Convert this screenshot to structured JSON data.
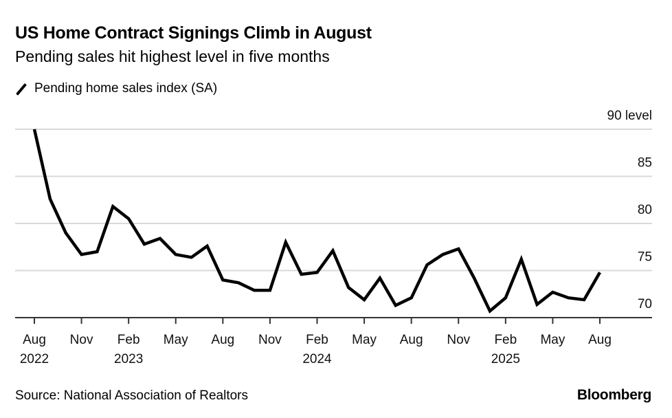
{
  "chart_data": {
    "type": "line",
    "title": "US Home Contract Signings Climb in August",
    "subtitle": "Pending sales hit highest level in five months",
    "xlabel": "",
    "ylabel": "",
    "y_unit_label": "level",
    "ylim": [
      70,
      90
    ],
    "yticks": [
      70,
      75,
      80,
      85,
      90
    ],
    "grid": true,
    "legend_placement": "top-left",
    "x": [
      "2022-08",
      "2022-09",
      "2022-10",
      "2022-11",
      "2022-12",
      "2023-01",
      "2023-02",
      "2023-03",
      "2023-04",
      "2023-05",
      "2023-06",
      "2023-07",
      "2023-08",
      "2023-09",
      "2023-10",
      "2023-11",
      "2023-12",
      "2024-01",
      "2024-02",
      "2024-03",
      "2024-04",
      "2024-05",
      "2024-06",
      "2024-07",
      "2024-08",
      "2024-09",
      "2024-10",
      "2024-11",
      "2024-12",
      "2025-01",
      "2025-02",
      "2025-03",
      "2025-04",
      "2025-05",
      "2025-06",
      "2025-07",
      "2025-08"
    ],
    "xticks": [
      {
        "index": 0,
        "month": "Aug",
        "year": "2022"
      },
      {
        "index": 3,
        "month": "Nov",
        "year": ""
      },
      {
        "index": 6,
        "month": "Feb",
        "year": "2023"
      },
      {
        "index": 9,
        "month": "May",
        "year": ""
      },
      {
        "index": 12,
        "month": "Aug",
        "year": ""
      },
      {
        "index": 15,
        "month": "Nov",
        "year": ""
      },
      {
        "index": 18,
        "month": "Feb",
        "year": "2024"
      },
      {
        "index": 21,
        "month": "May",
        "year": ""
      },
      {
        "index": 24,
        "month": "Aug",
        "year": ""
      },
      {
        "index": 27,
        "month": "Nov",
        "year": ""
      },
      {
        "index": 30,
        "month": "Feb",
        "year": "2025"
      },
      {
        "index": 33,
        "month": "May",
        "year": ""
      },
      {
        "index": 36,
        "month": "Aug",
        "year": ""
      }
    ],
    "series": [
      {
        "name": "Pending home sales index (SA)",
        "color": "#000000",
        "values": [
          90.0,
          82.6,
          79.0,
          76.7,
          77.0,
          81.8,
          80.5,
          77.8,
          78.4,
          76.7,
          76.4,
          77.6,
          74.0,
          73.7,
          72.9,
          72.9,
          78.0,
          74.6,
          74.8,
          77.1,
          73.2,
          71.9,
          74.2,
          71.3,
          72.1,
          75.6,
          76.7,
          77.3,
          74.2,
          70.7,
          72.1,
          76.2,
          71.4,
          72.7,
          72.1,
          71.9,
          74.8
        ]
      }
    ]
  },
  "header": {
    "title": "US Home Contract Signings Climb in August",
    "subtitle": "Pending sales hit highest level in five months",
    "legend_label": "Pending home sales index (SA)"
  },
  "footer": {
    "source": "Source: National Association of Realtors",
    "brand": "Bloomberg"
  },
  "colors": {
    "line": "#000000",
    "grid": "#d9d9d9",
    "axis": "#333333"
  }
}
